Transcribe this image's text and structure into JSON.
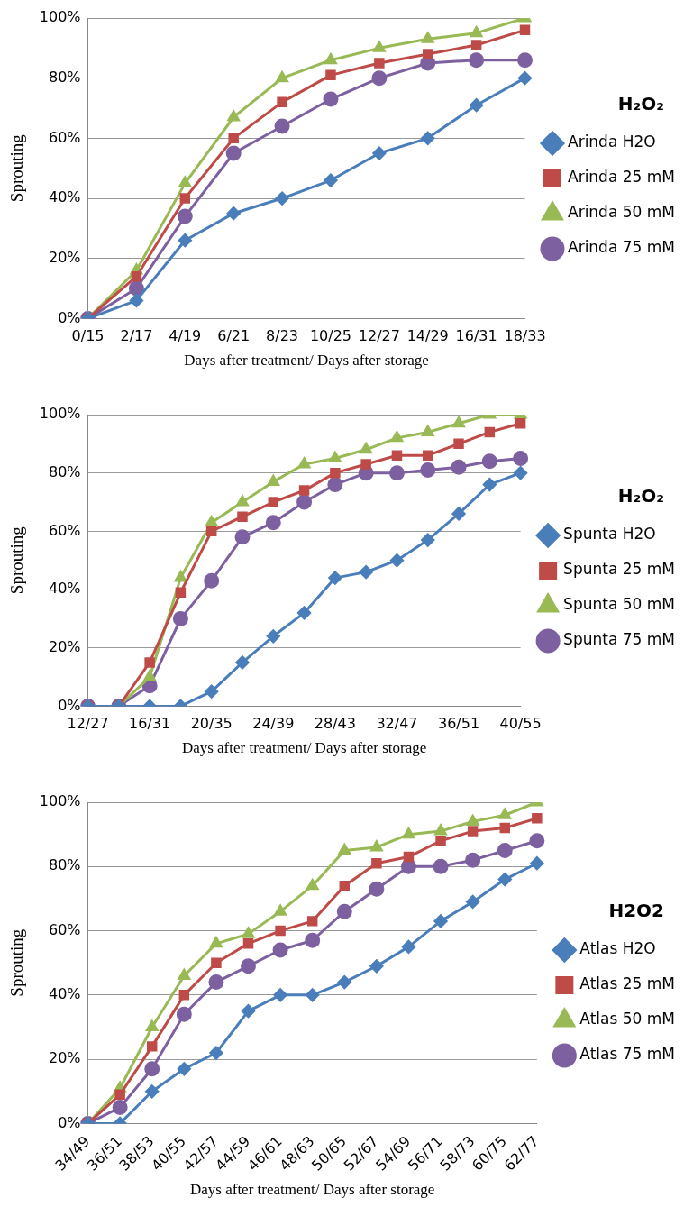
{
  "chart_data": [
    {
      "type": "line",
      "xlabel": "Days after treatment/ Days after storage",
      "ylabel": "Sprouting",
      "annotations": [
        "H₂O₂"
      ],
      "categories": [
        "0/15",
        "2/17",
        "4/19",
        "6/21",
        "8/23",
        "10/25",
        "12/27",
        "14/29",
        "16/31",
        "18/33"
      ],
      "ylim": [
        0,
        100
      ],
      "yticks": [
        {
          "value": 0,
          "label": "0%"
        },
        {
          "value": 20,
          "label": "20%"
        },
        {
          "value": 40,
          "label": "40%"
        },
        {
          "value": 60,
          "label": "60%"
        },
        {
          "value": 80,
          "label": "80%"
        },
        {
          "value": 100,
          "label": "100%"
        }
      ],
      "grid": "y",
      "legend": "right",
      "line_style": "solid",
      "series": [
        {
          "name": "Arinda H2O",
          "color": "#4a7ebb",
          "marker": "diamond",
          "values": [
            0,
            6,
            26,
            35,
            40,
            46,
            55,
            60,
            71,
            80
          ]
        },
        {
          "name": "Arinda 25 mM",
          "color": "#be4b48",
          "marker": "square",
          "values": [
            0,
            14,
            40,
            60,
            72,
            81,
            85,
            88,
            91,
            96
          ]
        },
        {
          "name": "Arinda 50 mM",
          "color": "#98b954",
          "marker": "triangle",
          "values": [
            0,
            16,
            45,
            67,
            80,
            86,
            90,
            93,
            95,
            100
          ]
        },
        {
          "name": "Arinda 75 mM",
          "color": "#7d60a0",
          "marker": "circle",
          "values": [
            0,
            10,
            34,
            55,
            64,
            73,
            80,
            85,
            86,
            86
          ]
        }
      ]
    },
    {
      "type": "line",
      "xlabel": "Days after treatment/ Days after storage",
      "ylabel": "Sprouting",
      "annotations": [
        "H₂O₂"
      ],
      "categories": [
        "12/27",
        null,
        "16/31",
        null,
        "20/35",
        null,
        "24/39",
        null,
        "28/43",
        null,
        "32/47",
        null,
        "36/51",
        null,
        "40/55"
      ],
      "ylim": [
        0,
        100
      ],
      "yticks": [
        {
          "value": 0,
          "label": "0%"
        },
        {
          "value": 20,
          "label": "20%"
        },
        {
          "value": 40,
          "label": "40%"
        },
        {
          "value": 60,
          "label": "60%"
        },
        {
          "value": 80,
          "label": "80%"
        },
        {
          "value": 100,
          "label": "100%"
        }
      ],
      "grid": "y",
      "legend": "right",
      "line_style": "solid",
      "series": [
        {
          "name": "Spunta H2O",
          "color": "#4a7ebb",
          "marker": "diamond",
          "values": [
            0,
            0,
            0,
            0,
            5,
            15,
            24,
            32,
            44,
            46,
            50,
            57,
            66,
            76,
            80
          ]
        },
        {
          "name": "Spunta 25 mM",
          "color": "#be4b48",
          "marker": "square",
          "values": [
            0,
            0,
            15,
            39,
            60,
            65,
            70,
            74,
            80,
            83,
            86,
            86,
            90,
            94,
            97
          ]
        },
        {
          "name": "Spunta 50 mM",
          "color": "#98b954",
          "marker": "triangle",
          "values": [
            0,
            0,
            10,
            44,
            63,
            70,
            77,
            83,
            85,
            88,
            92,
            94,
            97,
            100,
            100
          ]
        },
        {
          "name": "Spunta 75 mM",
          "color": "#7d60a0",
          "marker": "circle",
          "values": [
            0,
            0,
            7,
            30,
            43,
            58,
            63,
            70,
            76,
            80,
            80,
            81,
            82,
            84,
            85
          ]
        }
      ]
    },
    {
      "type": "line",
      "xlabel": "Days after treatment/ Days after storage",
      "ylabel": "Sprouting",
      "annotations": [
        "H2O2"
      ],
      "categories": [
        "34/49",
        "36/51",
        "38/53",
        "40/55",
        "42/57",
        "44/59",
        "46/61",
        "48/63",
        "50/65",
        "52/67",
        "54/69",
        "56/71",
        "58/73",
        "60/75",
        "62/77"
      ],
      "ylim": [
        0,
        100
      ],
      "yticks": [
        {
          "value": 0,
          "label": "0%"
        },
        {
          "value": 20,
          "label": "20%"
        },
        {
          "value": 40,
          "label": "40%"
        },
        {
          "value": 60,
          "label": "60%"
        },
        {
          "value": 80,
          "label": "80%"
        },
        {
          "value": 100,
          "label": "100%"
        }
      ],
      "grid": "y",
      "legend": "right",
      "line_style": "solid",
      "series": [
        {
          "name": "Atlas H2O",
          "color": "#4a7ebb",
          "marker": "diamond",
          "values": [
            0,
            0,
            10,
            17,
            22,
            35,
            40,
            40,
            44,
            49,
            55,
            63,
            69,
            76,
            81
          ]
        },
        {
          "name": "Atlas 25 mM",
          "color": "#be4b48",
          "marker": "square",
          "values": [
            0,
            9,
            24,
            40,
            50,
            56,
            60,
            63,
            74,
            81,
            83,
            88,
            91,
            92,
            95
          ]
        },
        {
          "name": "Atlas 50 mM",
          "color": "#98b954",
          "marker": "triangle",
          "values": [
            0,
            11,
            30,
            46,
            56,
            59,
            66,
            74,
            85,
            86,
            90,
            91,
            94,
            96,
            100
          ]
        },
        {
          "name": "Atlas 75 mM",
          "color": "#7d60a0",
          "marker": "circle",
          "values": [
            0,
            5,
            17,
            34,
            44,
            49,
            54,
            57,
            66,
            73,
            80,
            80,
            82,
            85,
            88
          ]
        }
      ]
    }
  ]
}
